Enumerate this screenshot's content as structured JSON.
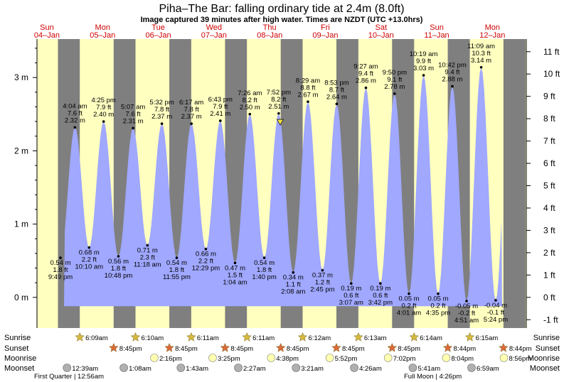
{
  "header": {
    "title": "Piha–The Bar: falling  ordinary tide at 2.4m (8.0ft)",
    "subtitle": "Image captured 39 minutes after high water. Times are NZDT (UTC +13.0hrs)"
  },
  "chart_data": {
    "type": "area",
    "days": [
      {
        "name": "Sun",
        "date": "04–Jan"
      },
      {
        "name": "Mon",
        "date": "05–Jan"
      },
      {
        "name": "Tue",
        "date": "06–Jan"
      },
      {
        "name": "Wed",
        "date": "07–Jan"
      },
      {
        "name": "Thu",
        "date": "08–Jan"
      },
      {
        "name": "Fri",
        "date": "09–Jan"
      },
      {
        "name": "Sat",
        "date": "10–Jan"
      },
      {
        "name": "Sun",
        "date": "11–Jan"
      },
      {
        "name": "Mon",
        "date": "12–Jan"
      }
    ],
    "y_left_ticks": [
      {
        "v": 0,
        "label": "0 m"
      },
      {
        "v": 1,
        "label": "1 m"
      },
      {
        "v": 2,
        "label": "2 m"
      },
      {
        "v": 3,
        "label": "3 m"
      }
    ],
    "y_right_ticks": [
      "-1 ft",
      "0 ft",
      "1 ft",
      "2 ft",
      "3 ft",
      "4 ft",
      "5 ft",
      "6 ft",
      "7 ft",
      "8 ft",
      "9 ft",
      "10 ft",
      "11 ft"
    ],
    "ylim": [
      -0.5,
      3.4
    ],
    "tides": [
      {
        "kind": "low",
        "day": 0,
        "hour": 21.82,
        "m": 0.54,
        "lines": [
          "0.54 m",
          "1.8 ft",
          "9:49 pm"
        ]
      },
      {
        "kind": "high",
        "day": 1,
        "hour": 4.07,
        "m": 2.32,
        "lines": [
          "4:04 am",
          "7.6 ft",
          "2.32 m"
        ]
      },
      {
        "kind": "low",
        "day": 1,
        "hour": 10.17,
        "m": 0.68,
        "lines": [
          "0.68 m",
          "2.2 ft",
          "10:10 am"
        ]
      },
      {
        "kind": "high",
        "day": 1,
        "hour": 16.42,
        "m": 2.4,
        "lines": [
          "4:25 pm",
          "7.9 ft",
          "2.40 m"
        ]
      },
      {
        "kind": "low",
        "day": 1,
        "hour": 22.8,
        "m": 0.56,
        "lines": [
          "0.56 m",
          "1.8 ft",
          "10:48 pm"
        ]
      },
      {
        "kind": "high",
        "day": 2,
        "hour": 5.12,
        "m": 2.31,
        "lines": [
          "5:07 am",
          "7.6 ft",
          "2.31 m"
        ]
      },
      {
        "kind": "low",
        "day": 2,
        "hour": 11.3,
        "m": 0.71,
        "lines": [
          "0.71 m",
          "2.3 ft",
          "11:18 am"
        ]
      },
      {
        "kind": "high",
        "day": 2,
        "hour": 17.53,
        "m": 2.37,
        "lines": [
          "5:32 pm",
          "7.8 ft",
          "2.37 m"
        ]
      },
      {
        "kind": "low",
        "day": 2,
        "hour": 23.92,
        "m": 0.54,
        "lines": [
          "0.54 m",
          "1.8 ft",
          "11:55 pm"
        ]
      },
      {
        "kind": "high",
        "day": 3,
        "hour": 6.28,
        "m": 2.37,
        "lines": [
          "6:17 am",
          "7.8 ft",
          "2.37 m"
        ]
      },
      {
        "kind": "low",
        "day": 3,
        "hour": 12.48,
        "m": 0.66,
        "lines": [
          "0.66 m",
          "2.2 ft",
          "12:29 pm"
        ]
      },
      {
        "kind": "high",
        "day": 3,
        "hour": 18.72,
        "m": 2.41,
        "lines": [
          "6:43 pm",
          "7.9 ft",
          "2.41 m"
        ]
      },
      {
        "kind": "low",
        "day": 4,
        "hour": 1.07,
        "m": 0.47,
        "lines": [
          "0.47 m",
          "1.5 ft",
          "1:04 am"
        ]
      },
      {
        "kind": "high",
        "day": 4,
        "hour": 7.43,
        "m": 2.5,
        "lines": [
          "7:26 am",
          "8.2 ft",
          "2.50 m"
        ]
      },
      {
        "kind": "low",
        "day": 4,
        "hour": 13.67,
        "m": 0.54,
        "lines": [
          "0.54 m",
          "1.8 ft",
          "1:40 pm"
        ]
      },
      {
        "kind": "high",
        "day": 4,
        "hour": 19.87,
        "m": 2.51,
        "lines": [
          "7:52 pm",
          "8.2 ft",
          "2.51 m"
        ]
      },
      {
        "kind": "low",
        "day": 5,
        "hour": 2.13,
        "m": 0.34,
        "lines": [
          "0.34 m",
          "1.1 ft",
          "2:08 am"
        ]
      },
      {
        "kind": "high",
        "day": 5,
        "hour": 8.48,
        "m": 2.67,
        "lines": [
          "8:29 am",
          "8.8 ft",
          "2.67 m"
        ]
      },
      {
        "kind": "low",
        "day": 5,
        "hour": 14.75,
        "m": 0.37,
        "lines": [
          "0.37 m",
          "1.2 ft",
          "2:45 pm"
        ]
      },
      {
        "kind": "high",
        "day": 5,
        "hour": 20.88,
        "m": 2.64,
        "lines": [
          "8:53 pm",
          "8.7 ft",
          "2.64 m"
        ]
      },
      {
        "kind": "low",
        "day": 6,
        "hour": 3.12,
        "m": 0.19,
        "lines": [
          "0.19 m",
          "0.6 ft",
          "3:07 am"
        ]
      },
      {
        "kind": "high",
        "day": 6,
        "hour": 9.45,
        "m": 2.86,
        "lines": [
          "9:27 am",
          "9.4 ft",
          "2.86 m"
        ]
      },
      {
        "kind": "low",
        "day": 6,
        "hour": 15.7,
        "m": 0.19,
        "lines": [
          "0.19 m",
          "0.6 ft",
          "3:42 pm"
        ]
      },
      {
        "kind": "high",
        "day": 6,
        "hour": 21.83,
        "m": 2.78,
        "lines": [
          "9:50 pm",
          "9.1 ft",
          "2.78 m"
        ]
      },
      {
        "kind": "low",
        "day": 7,
        "hour": 4.02,
        "m": 0.05,
        "lines": [
          "0.05 m",
          "0.2 ft",
          "4:01 am"
        ]
      },
      {
        "kind": "high",
        "day": 7,
        "hour": 10.32,
        "m": 3.03,
        "lines": [
          "10:19 am",
          "9.9 ft",
          "3.03 m"
        ]
      },
      {
        "kind": "low",
        "day": 7,
        "hour": 16.58,
        "m": 0.05,
        "lines": [
          "0.05 m",
          "0.2 ft",
          "4:35 pm"
        ]
      },
      {
        "kind": "high",
        "day": 7,
        "hour": 22.7,
        "m": 2.88,
        "lines": [
          "10:42 pm",
          "9.4 ft",
          "2.88 m"
        ]
      },
      {
        "kind": "low",
        "day": 8,
        "hour": 4.85,
        "m": -0.05,
        "lines": [
          "-0.05 m",
          "-0.2 ft",
          "4:51 am"
        ]
      },
      {
        "kind": "high",
        "day": 8,
        "hour": 11.15,
        "m": 3.14,
        "lines": [
          "11:09 am",
          "10.3 ft",
          "3.14 m"
        ]
      },
      {
        "kind": "low",
        "day": 8,
        "hour": 17.4,
        "m": -0.04,
        "lines": [
          "-0.04 m",
          "-0.1 ft",
          "5:24 pm"
        ]
      }
    ],
    "marker": {
      "day": 4,
      "hour": 20.52,
      "m": 2.4
    },
    "sun_rows": {
      "sunrise": [
        "6:09am",
        "6:10am",
        "6:11am",
        "6:11am",
        "6:12am",
        "6:13am",
        "6:14am",
        "6:15am"
      ],
      "sunset": [
        "8:45pm",
        "8:45pm",
        "8:45pm",
        "8:45pm",
        "8:45pm",
        "8:45pm",
        "8:44pm",
        "8:44pm"
      ]
    },
    "moon_rows": {
      "moonrise": [
        "2:16pm",
        "3:25pm",
        "4:38pm",
        "5:52pm",
        "7:02pm",
        "8:04pm",
        "8:56pm"
      ],
      "moonset": [
        "12:39am",
        "1:08am",
        "1:43am",
        "2:27am",
        "3:21am",
        "4:26am",
        "5:41am",
        "6:59am"
      ]
    },
    "row_labels": [
      "Sunrise",
      "Sunset",
      "Moonrise",
      "Moonset"
    ],
    "moon_phases": [
      "First Quarter | 12:56am",
      "Full Moon | 4:26pm"
    ],
    "colors": {
      "day_bg": "#ffffc0",
      "night_bg": "#7f7f7f",
      "water": "#a0a8ff",
      "day_label": "#d00000",
      "sun_star": "#d4b840",
      "sunset_star": "#d96a3a",
      "moonrise": "#ffffb0",
      "moonset": "#b0b0b0",
      "marker": "#f4e040"
    }
  }
}
